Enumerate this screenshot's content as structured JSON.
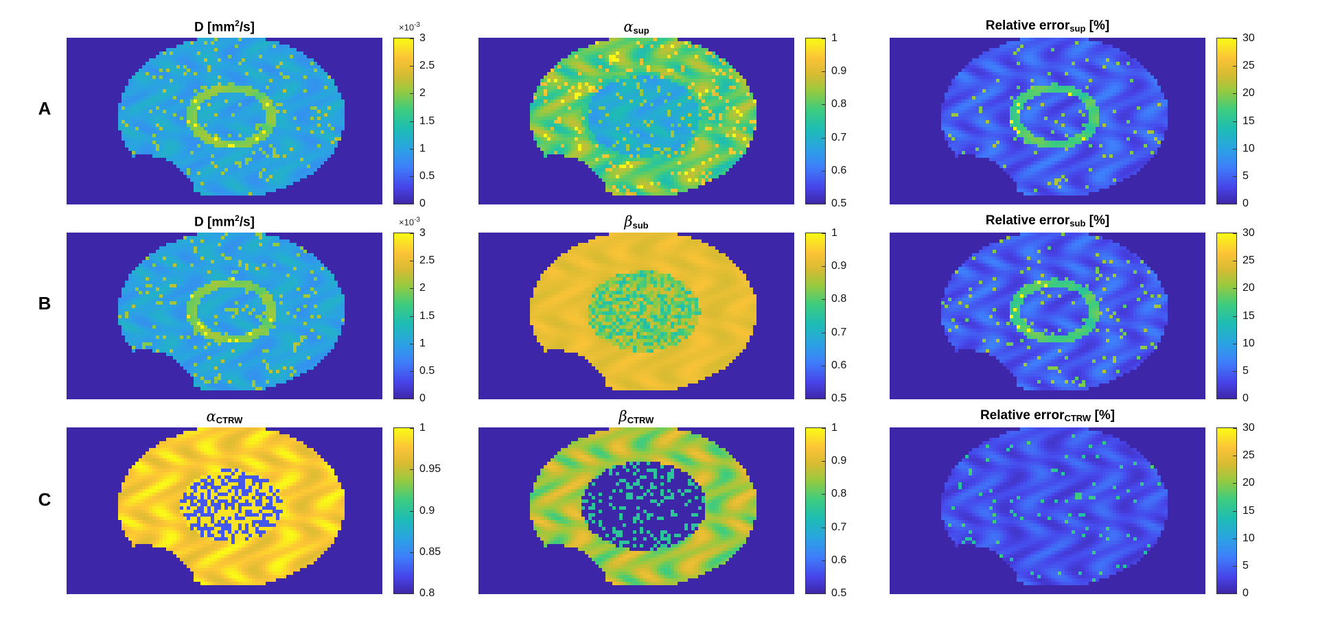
{
  "row_labels": [
    "A",
    "B",
    "C"
  ],
  "colors": {
    "background_map": "#3e26a8"
  },
  "panels": [
    {
      "row": "A",
      "title_main": "D [mm",
      "title_sup": "2",
      "title_tail": "/s]",
      "title_style": "plain",
      "scale_label": "×10",
      "scale_exp": "-3",
      "ticks": [
        "3",
        "2.5",
        "2",
        "1.5",
        "1",
        "0.5",
        "0"
      ],
      "cmap_mode": "d"
    },
    {
      "row": "A",
      "title_main": "α",
      "title_sub": "sup",
      "title_style": "greek",
      "ticks": [
        "1",
        "0.9",
        "0.8",
        "0.7",
        "0.6",
        "0.5"
      ],
      "cmap_mode": "alpha_sup"
    },
    {
      "row": "A",
      "title_main": "Relative error",
      "title_sub": "sup",
      "title_tail": " [%]",
      "title_style": "plain",
      "ticks": [
        "30",
        "25",
        "20",
        "15",
        "10",
        "5",
        "0"
      ],
      "cmap_mode": "err"
    },
    {
      "row": "B",
      "title_main": "D [mm",
      "title_sup": "2",
      "title_tail": "/s]",
      "title_style": "plain",
      "scale_label": "×10",
      "scale_exp": "-3",
      "ticks": [
        "3",
        "2.5",
        "2",
        "1.5",
        "1",
        "0.5",
        "0"
      ],
      "cmap_mode": "d"
    },
    {
      "row": "B",
      "title_main": "β",
      "title_sub": "sub",
      "title_style": "greek",
      "ticks": [
        "1",
        "0.9",
        "0.8",
        "0.7",
        "0.6",
        "0.5"
      ],
      "cmap_mode": "beta_sub"
    },
    {
      "row": "B",
      "title_main": "Relative error",
      "title_sub": "sub",
      "title_tail": " [%]",
      "title_style": "plain",
      "ticks": [
        "30",
        "25",
        "20",
        "15",
        "10",
        "5",
        "0"
      ],
      "cmap_mode": "err"
    },
    {
      "row": "C",
      "title_main": "α",
      "title_sub": "CTRW",
      "title_style": "greek",
      "ticks": [
        "1",
        "0.95",
        "0.9",
        "0.85",
        "0.8"
      ],
      "cmap_mode": "alpha_ctrw"
    },
    {
      "row": "C",
      "title_main": "β",
      "title_sub": "CTRW",
      "title_style": "greek",
      "ticks": [
        "1",
        "0.9",
        "0.8",
        "0.7",
        "0.6",
        "0.5"
      ],
      "cmap_mode": "beta_ctrw"
    },
    {
      "row": "C",
      "title_main": "Relative error",
      "title_sub": "CTRW",
      "title_tail": " [%]",
      "title_style": "plain",
      "ticks": [
        "30",
        "25",
        "20",
        "15",
        "10",
        "5",
        "0"
      ],
      "cmap_mode": "err_low"
    }
  ]
}
